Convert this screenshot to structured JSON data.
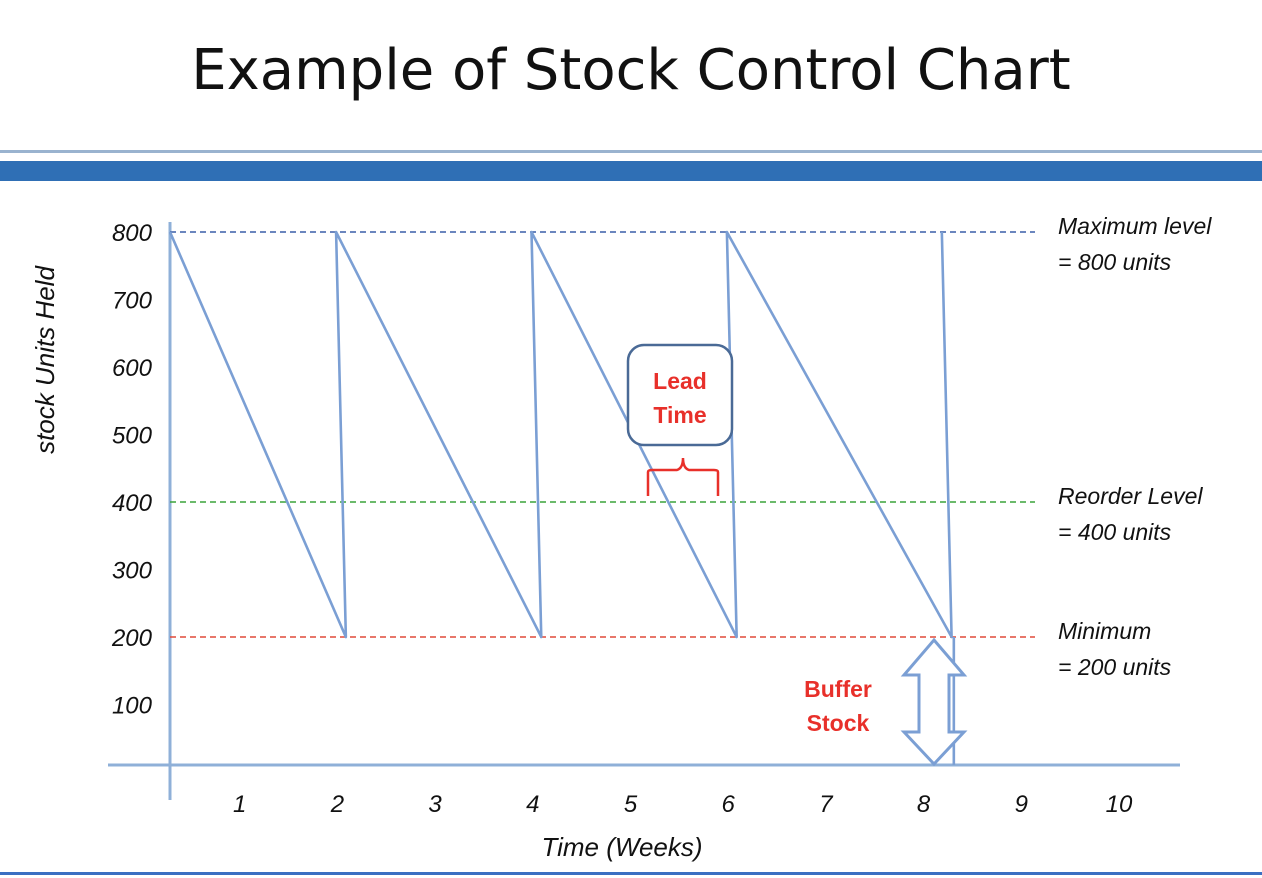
{
  "title": "Example of Stock Control Chart",
  "chart_data": {
    "type": "line",
    "title": "",
    "xlabel": "Time (Weeks)",
    "ylabel": "stock Units Held",
    "x_ticks": [
      "1",
      "2",
      "3",
      "4",
      "5",
      "6",
      "7",
      "8",
      "9",
      "10"
    ],
    "y_ticks": [
      "100",
      "200",
      "300",
      "400",
      "500",
      "600",
      "700",
      "800"
    ],
    "xlim": [
      0,
      10.5
    ],
    "ylim": [
      0,
      800
    ],
    "grid": false,
    "series": [
      {
        "values": [
          {
            "x": 0,
            "y": 800
          },
          {
            "x": 1.8,
            "y": 200
          },
          {
            "x": 1.7,
            "y": 800
          },
          {
            "x": 3.8,
            "y": 200
          },
          {
            "x": 3.7,
            "y": 800
          },
          {
            "x": 5.8,
            "y": 200
          },
          {
            "x": 5.7,
            "y": 800
          },
          {
            "x": 8.0,
            "y": 200
          },
          {
            "x": 7.9,
            "y": 800
          }
        ],
        "color": "#7b9fd4"
      }
    ],
    "reference_lines": [
      {
        "y": 800,
        "color": "#3a5fa8",
        "label_line1": "Maximum level",
        "label_line2": "= 800 units"
      },
      {
        "y": 400,
        "color": "#3aa33a",
        "label_line1": "Reorder Level",
        "label_line2": "= 400 units"
      },
      {
        "y": 200,
        "color": "#e04a3a",
        "label_line1": "Minimum",
        "label_line2": "= 200 units"
      }
    ],
    "annotations": {
      "lead_time": {
        "line1": "Lead",
        "line2": "Time",
        "x_start": 5.2,
        "x_end": 5.9,
        "y": 400
      },
      "buffer_stock": {
        "line1": "Buffer",
        "line2": "Stock",
        "x": 8.0,
        "y_from": 0,
        "y_to": 200
      }
    }
  }
}
